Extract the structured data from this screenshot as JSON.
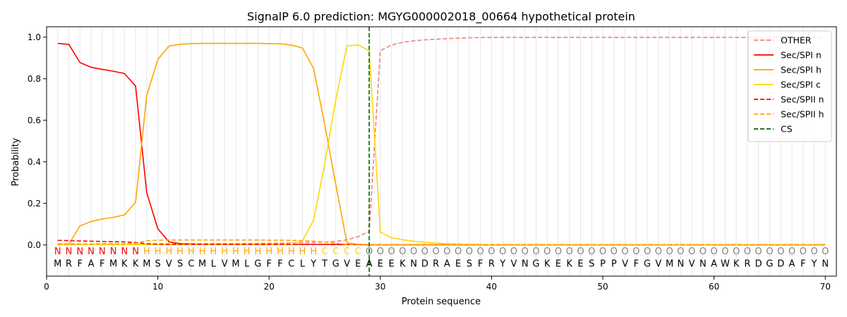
{
  "chart_data": {
    "type": "line",
    "title": "SignalP 6.0 prediction: MGYG000002018_00664 hypothetical protein",
    "xlabel": "Protein sequence",
    "ylabel": "Probability",
    "xlim": [
      0,
      71
    ],
    "ylim": [
      -0.15,
      1.05
    ],
    "x_ticks": [
      0,
      10,
      20,
      30,
      40,
      50,
      60,
      70
    ],
    "y_ticks": [
      0.0,
      0.2,
      0.4,
      0.6,
      0.8,
      1.0
    ],
    "x_tick_labels": [
      "0",
      "10",
      "20",
      "30",
      "40",
      "50",
      "60",
      "70"
    ],
    "y_tick_labels": [
      "0.0",
      "0.2",
      "0.4",
      "0.6",
      "0.8",
      "1.0"
    ],
    "grid": "vertical lines at each residue position",
    "legend_position": "top-right",
    "sequence": "MRFAFMKKMSVSCMLVMLGFFCLYTGVEAEEKNDRAESFRYVNGKEKESPPVFGVMNVNAWKRDGDAFYN",
    "region_labels": "NNNNNNNNHHHHHHHHHHHHHHHHCCCCOOOOOOOOOOOOOOOOOOOOOOOOOOOOOOOOOOOOOOOOOOO",
    "region_colors": {
      "N": "#ff0000",
      "H": "#ffa500",
      "C": "#ffd700",
      "O": "#808080"
    },
    "cleavage_site": 29,
    "series": [
      {
        "name": "OTHER",
        "color": "#f08080",
        "dash": "dashed",
        "values": [
          0.005,
          0.005,
          0.005,
          0.005,
          0.005,
          0.005,
          0.005,
          0.005,
          0.005,
          0.005,
          0.005,
          0.005,
          0.006,
          0.006,
          0.006,
          0.006,
          0.006,
          0.007,
          0.007,
          0.008,
          0.009,
          0.01,
          0.011,
          0.012,
          0.014,
          0.017,
          0.025,
          0.04,
          0.065,
          0.935,
          0.962,
          0.975,
          0.982,
          0.987,
          0.99,
          0.993,
          0.995,
          0.997,
          0.998,
          0.999,
          0.999,
          0.999,
          0.999,
          0.999,
          0.999,
          0.999,
          0.999,
          0.999,
          0.999,
          0.999,
          0.999,
          0.999,
          0.999,
          0.999,
          0.999,
          0.999,
          0.999,
          0.999,
          0.999,
          0.999,
          0.999,
          0.999,
          0.999,
          0.999,
          0.999,
          0.999,
          0.999,
          0.999,
          0.999,
          0.999
        ]
      },
      {
        "name": "Sec/SPI n",
        "color": "#ff0000",
        "dash": "solid",
        "values": [
          0.97,
          0.965,
          0.878,
          0.855,
          0.845,
          0.836,
          0.825,
          0.765,
          0.252,
          0.078,
          0.015,
          0.006,
          0.004,
          0.003,
          0.003,
          0.003,
          0.003,
          0.003,
          0.003,
          0.003,
          0.003,
          0.003,
          0.003,
          0.003,
          0.003,
          0.003,
          0.002,
          0.002,
          0.001,
          0.001,
          0.001,
          0.001,
          0.001,
          0.001,
          0.001,
          0.001,
          0.001,
          0.001,
          0.001,
          0.001,
          0.001,
          0.001,
          0.001,
          0.001,
          0.001,
          0.001,
          0.001,
          0.001,
          0.001,
          0.001,
          0.001,
          0.001,
          0.001,
          0.001,
          0.001,
          0.001,
          0.001,
          0.001,
          0.001,
          0.001,
          0.001,
          0.001,
          0.001,
          0.001,
          0.001,
          0.001,
          0.001,
          0.001,
          0.001,
          0.001
        ]
      },
      {
        "name": "Sec/SPI h",
        "color": "#ffa500",
        "dash": "solid",
        "values": [
          0.003,
          0.003,
          0.092,
          0.113,
          0.125,
          0.133,
          0.145,
          0.205,
          0.72,
          0.893,
          0.957,
          0.966,
          0.969,
          0.97,
          0.97,
          0.97,
          0.97,
          0.97,
          0.97,
          0.969,
          0.968,
          0.962,
          0.948,
          0.85,
          0.58,
          0.29,
          0.01,
          0.003,
          0.002,
          0.001,
          0.001,
          0.001,
          0.001,
          0.001,
          0.001,
          0.001,
          0.001,
          0.001,
          0.001,
          0.001,
          0.001,
          0.001,
          0.001,
          0.001,
          0.001,
          0.001,
          0.001,
          0.001,
          0.001,
          0.001,
          0.001,
          0.001,
          0.001,
          0.001,
          0.001,
          0.001,
          0.001,
          0.001,
          0.001,
          0.001,
          0.001,
          0.001,
          0.001,
          0.001,
          0.001,
          0.001,
          0.001,
          0.001,
          0.001,
          0.001
        ]
      },
      {
        "name": "Sec/SPI c",
        "color": "#ffd700",
        "dash": "solid",
        "values": [
          0.002,
          0.002,
          0.002,
          0.002,
          0.002,
          0.002,
          0.002,
          0.002,
          0.002,
          0.002,
          0.002,
          0.002,
          0.002,
          0.002,
          0.002,
          0.002,
          0.002,
          0.002,
          0.002,
          0.002,
          0.002,
          0.002,
          0.02,
          0.12,
          0.39,
          0.7,
          0.958,
          0.963,
          0.935,
          0.062,
          0.035,
          0.025,
          0.018,
          0.013,
          0.009,
          0.006,
          0.004,
          0.003,
          0.002,
          0.002,
          0.001,
          0.001,
          0.001,
          0.001,
          0.001,
          0.001,
          0.001,
          0.001,
          0.001,
          0.001,
          0.001,
          0.001,
          0.001,
          0.001,
          0.001,
          0.001,
          0.001,
          0.001,
          0.001,
          0.001,
          0.001,
          0.001,
          0.001,
          0.001,
          0.001,
          0.001,
          0.001,
          0.001,
          0.001,
          0.001
        ]
      },
      {
        "name": "Sec/SPII n",
        "color": "#ff0000",
        "dash": "dashed",
        "values": [
          0.022,
          0.021,
          0.019,
          0.018,
          0.017,
          0.016,
          0.015,
          0.012,
          0.006,
          0.004,
          0.003,
          0.003,
          0.003,
          0.003,
          0.003,
          0.003,
          0.003,
          0.003,
          0.003,
          0.003,
          0.003,
          0.003,
          0.003,
          0.003,
          0.003,
          0.002,
          0.002,
          0.002,
          0.001,
          0.001,
          0.001,
          0.001,
          0.001,
          0.001,
          0.001,
          0.001,
          0.001,
          0.001,
          0.001,
          0.001,
          0.001,
          0.001,
          0.001,
          0.001,
          0.001,
          0.001,
          0.001,
          0.001,
          0.001,
          0.001,
          0.001,
          0.001,
          0.001,
          0.001,
          0.001,
          0.001,
          0.001,
          0.001,
          0.001,
          0.001,
          0.001,
          0.001,
          0.001,
          0.001,
          0.001,
          0.001,
          0.001,
          0.001,
          0.001,
          0.001
        ]
      },
      {
        "name": "Sec/SPII h",
        "color": "#ffa500",
        "dash": "dashed",
        "values": [
          0.001,
          0.001,
          0.004,
          0.005,
          0.006,
          0.006,
          0.007,
          0.009,
          0.02,
          0.023,
          0.024,
          0.024,
          0.024,
          0.024,
          0.024,
          0.024,
          0.024,
          0.024,
          0.024,
          0.023,
          0.023,
          0.022,
          0.021,
          0.018,
          0.014,
          0.009,
          0.002,
          0.001,
          0.001,
          0.001,
          0.001,
          0.001,
          0.001,
          0.001,
          0.001,
          0.001,
          0.001,
          0.001,
          0.001,
          0.001,
          0.001,
          0.001,
          0.001,
          0.001,
          0.001,
          0.001,
          0.001,
          0.001,
          0.001,
          0.001,
          0.001,
          0.001,
          0.001,
          0.001,
          0.001,
          0.001,
          0.001,
          0.001,
          0.001,
          0.001,
          0.001,
          0.001,
          0.001,
          0.001,
          0.001,
          0.001,
          0.001,
          0.001,
          0.001,
          0.001
        ]
      }
    ],
    "cs_legend": {
      "name": "CS",
      "color": "#006400",
      "dash": "dashed"
    }
  }
}
